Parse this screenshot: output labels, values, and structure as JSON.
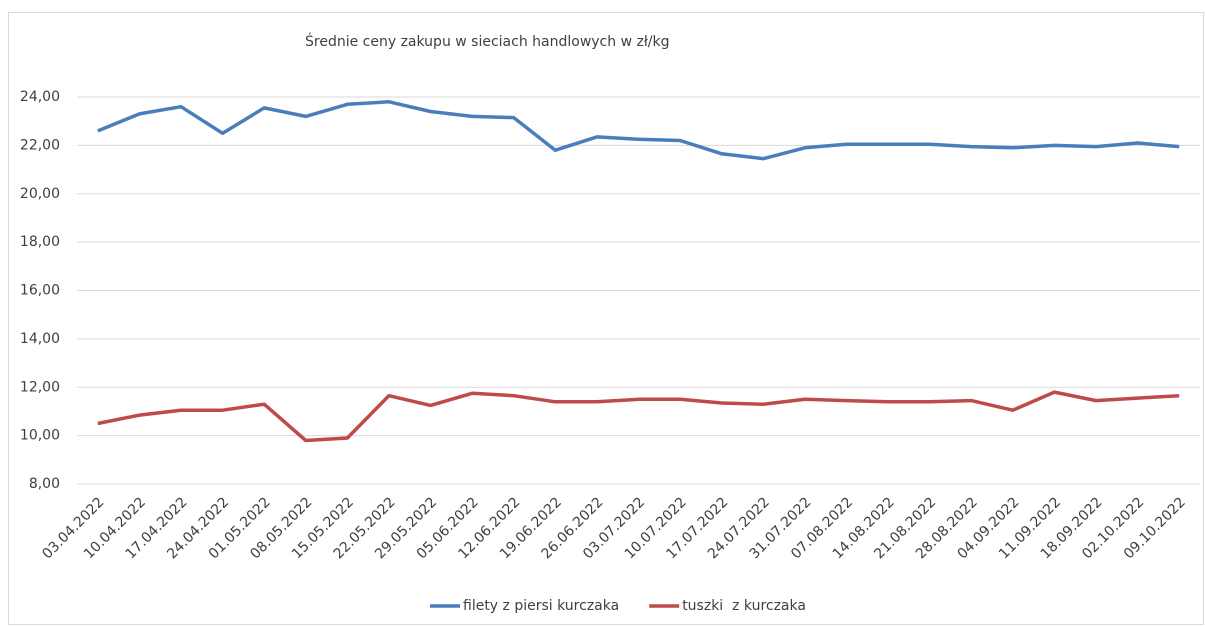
{
  "chart_data": {
    "type": "line",
    "title": "Średnie ceny zakupu w sieciach handlowych w zł/kg",
    "categories": [
      "03.04.2022",
      "10.04.2022",
      "17.04.2022",
      "24.04.2022",
      "01.05.2022",
      "08.05.2022",
      "15.05.2022",
      "22.05.2022",
      "29.05.2022",
      "05.06.2022",
      "12.06.2022",
      "19.06.2022",
      "26.06.2022",
      "03.07.2022",
      "10.07.2022",
      "17.07.2022",
      "24.07.2022",
      "31.07.2022",
      "07.08.2022",
      "14.08.2022",
      "21.08.2022",
      "28.08.2022",
      "04.09.2022",
      "11.09.2022",
      "18.09.2022",
      "02.10.2022",
      "09.10.2022"
    ],
    "series": [
      {
        "name": "filety z piersi kurczaka",
        "color": "#4a7ebb",
        "values": [
          22.6,
          23.3,
          23.6,
          22.5,
          23.55,
          23.2,
          23.7,
          23.8,
          23.4,
          23.2,
          23.15,
          21.8,
          22.35,
          22.25,
          22.2,
          21.65,
          21.45,
          21.9,
          22.05,
          22.05,
          22.05,
          21.95,
          21.9,
          22.0,
          21.95,
          22.1,
          21.95
        ]
      },
      {
        "name": "tuszki  z kurczaka",
        "color": "#be4b48",
        "values": [
          10.5,
          10.85,
          11.05,
          11.05,
          11.3,
          9.8,
          9.9,
          11.65,
          11.25,
          11.75,
          11.65,
          11.4,
          11.4,
          11.5,
          11.5,
          11.35,
          11.3,
          11.5,
          11.45,
          11.4,
          11.4,
          11.45,
          11.05,
          11.8,
          11.45,
          11.55,
          11.65
        ]
      }
    ],
    "ylim": [
      8,
      24
    ],
    "yticks": [
      {
        "value": 8,
        "label": "8,00"
      },
      {
        "value": 10,
        "label": "10,00"
      },
      {
        "value": 12,
        "label": "12,00"
      },
      {
        "value": 14,
        "label": "14,00"
      },
      {
        "value": 16,
        "label": "16,00"
      },
      {
        "value": 18,
        "label": "18,00"
      },
      {
        "value": 20,
        "label": "20,00"
      },
      {
        "value": 22,
        "label": "22,00"
      },
      {
        "value": 24,
        "label": "24,00"
      }
    ],
    "grid": true,
    "legend": "bottom"
  }
}
